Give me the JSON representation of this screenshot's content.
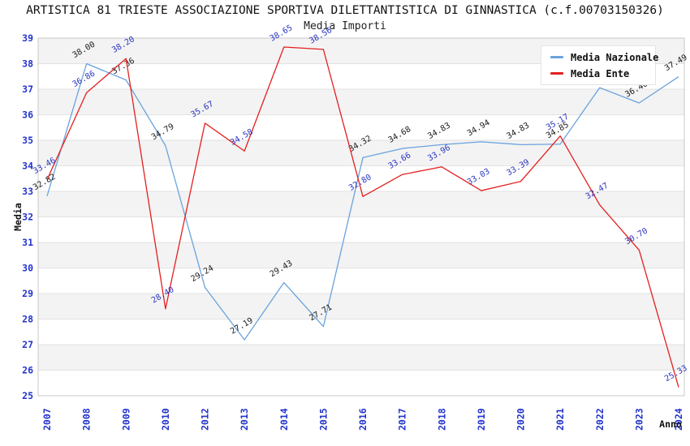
{
  "header": {
    "title": "ARTISTICA 81 TRIESTE ASSOCIAZIONE SPORTIVA DILETTANTISTICA DI GINNASTICA (c.f.00703150326)"
  },
  "chart_data": {
    "type": "line",
    "title": "Media Importi",
    "xlabel": "Anno",
    "ylabel": "Media",
    "ylim": [
      25,
      39
    ],
    "yticks": [
      25,
      26,
      27,
      28,
      29,
      30,
      31,
      32,
      33,
      34,
      35,
      36,
      37,
      38,
      39
    ],
    "grid": "horizontal-with-alternating-bands",
    "legend_position": "top-right",
    "categories": [
      "2007",
      "2008",
      "2009",
      "2010",
      "2012",
      "2013",
      "2014",
      "2015",
      "2016",
      "2017",
      "2018",
      "2019",
      "2020",
      "2021",
      "2022",
      "2023",
      "2024"
    ],
    "series": [
      {
        "name": "Media Nazionale",
        "color": "#69a3dd",
        "label_color": "#1a1a1a",
        "values": [
          32.82,
          38.0,
          37.36,
          34.79,
          29.24,
          27.19,
          29.43,
          27.71,
          34.32,
          34.68,
          34.83,
          34.94,
          34.83,
          34.85,
          37.06,
          36.46,
          37.49
        ]
      },
      {
        "name": "Media Ente",
        "color": "#e41f1f",
        "label_color": "#2a35c0",
        "values": [
          33.46,
          36.86,
          38.2,
          28.4,
          35.67,
          34.58,
          38.65,
          38.56,
          32.8,
          33.66,
          33.96,
          33.03,
          33.39,
          35.17,
          32.47,
          30.7,
          25.33
        ]
      }
    ],
    "colors": {
      "tick_label": "#2233cc",
      "axis_label": "#111111",
      "gridline": "#e2e2e2",
      "band_gray": "#f3f3f3",
      "frame": "#c9c9c9"
    }
  }
}
